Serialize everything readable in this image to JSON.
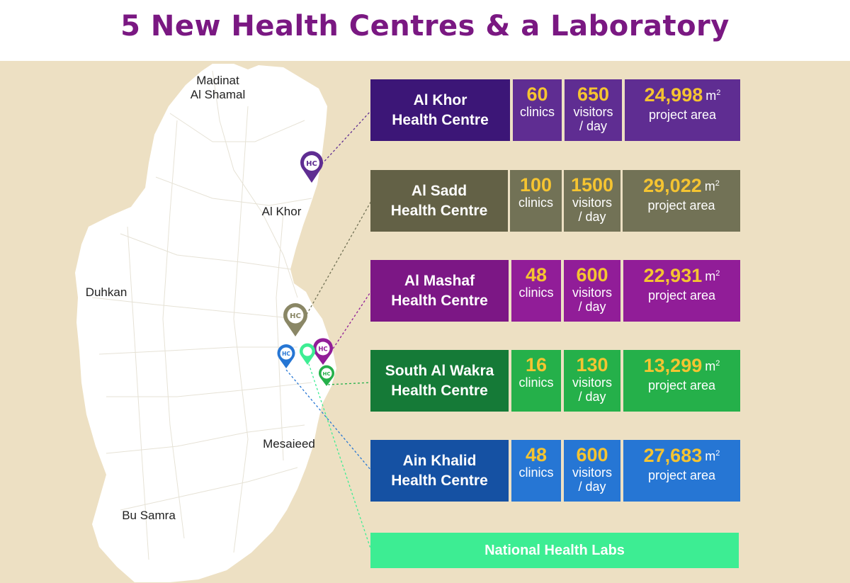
{
  "title": "5 New Health Centres & a Laboratory",
  "towns": {
    "madinat_line1": "Madinat",
    "madinat_line2": "Al Shamal",
    "al_khor": "Al Khor",
    "dukhan": "Duhkan",
    "mesaieed": "Mesaieed",
    "bu_samra": "Bu Samra"
  },
  "marker_label": "HC",
  "centres": [
    {
      "name_line1": "Al Khor",
      "name_line2": "Health Centre",
      "clinics": "60",
      "clinics_label": "clinics",
      "visitors": "650",
      "visitors_label1": "visitors",
      "visitors_label2": "/ day",
      "area": "24,998",
      "area_unit": "m",
      "area_unit_sup": "2",
      "area_label": "project area",
      "colors": {
        "name": "#3c1677",
        "cells": "#5f2d92"
      }
    },
    {
      "name_line1": "Al Sadd",
      "name_line2": "Health Centre",
      "clinics": "100",
      "clinics_label": "clinics",
      "visitors": "1500",
      "visitors_label1": "visitors",
      "visitors_label2": "/ day",
      "area": "29,022",
      "area_unit": "m",
      "area_unit_sup": "2",
      "area_label": "project area",
      "colors": {
        "name": "#636146",
        "cells": "#727256"
      }
    },
    {
      "name_line1": "Al Mashaf",
      "name_line2": "Health Centre",
      "clinics": "48",
      "clinics_label": "clinics",
      "visitors": "600",
      "visitors_label1": "visitors",
      "visitors_label2": "/ day",
      "area": "22,931",
      "area_unit": "m",
      "area_unit_sup": "2",
      "area_label": "project area",
      "colors": {
        "name": "#7c1785",
        "cells": "#911d98"
      }
    },
    {
      "name_line1": "South Al Wakra",
      "name_line2": "Health Centre",
      "clinics": "16",
      "clinics_label": "clinics",
      "visitors": "130",
      "visitors_label1": "visitors",
      "visitors_label2": "/ day",
      "area": "13,299",
      "area_unit": "m",
      "area_unit_sup": "2",
      "area_label": "project area",
      "colors": {
        "name": "#157a37",
        "cells": "#25b04a"
      }
    },
    {
      "name_line1": "Ain Khalid",
      "name_line2": "Health Centre",
      "clinics": "48",
      "clinics_label": "clinics",
      "visitors": "600",
      "visitors_label1": "visitors",
      "visitors_label2": "/ day",
      "area": "27,683",
      "area_unit": "m",
      "area_unit_sup": "2",
      "area_label": "project area",
      "colors": {
        "name": "#1551a3",
        "cells": "#2676d4"
      }
    }
  ],
  "lab_label": "National Health Labs",
  "colors": {
    "background": "#ede0c3",
    "land": "#ffffff",
    "title": "#7a1882",
    "number": "#f5c431",
    "lab": "#3ded93",
    "lab_marker": "#3ded93"
  }
}
